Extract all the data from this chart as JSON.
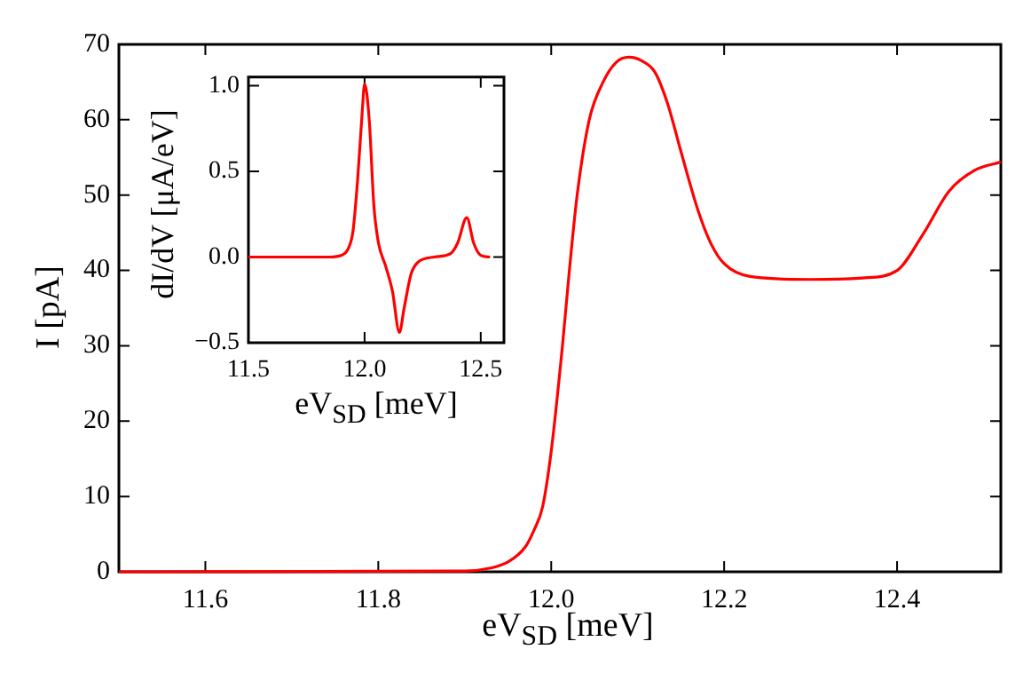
{
  "chart_data": [
    {
      "type": "line",
      "xlabel": "eV$_{SD}$ [meV]",
      "ylabel": "I [pA]",
      "xlim": [
        11.5,
        12.52
      ],
      "ylim": [
        0,
        70
      ],
      "xticks": [
        11.6,
        11.8,
        {
          "value": 12,
          "label": "12.0"
        },
        12.2,
        12.4
      ],
      "yticks": [
        0,
        10,
        20,
        30,
        40,
        50,
        60,
        70
      ],
      "series": [
        {
          "color": "#ff0000",
          "x": [
            11.5,
            11.9,
            11.93,
            11.95,
            11.97,
            11.98,
            11.99,
            12.0,
            12.013,
            12.021,
            12.03,
            12.044,
            12.06,
            12.075,
            12.09,
            12.105,
            12.12,
            12.135,
            12.15,
            12.17,
            12.185,
            12.2,
            12.23,
            12.3,
            12.36,
            12.4,
            12.43,
            12.46,
            12.49,
            12.52
          ],
          "values": [
            0,
            0.1,
            0.5,
            1.3,
            3.3,
            5.5,
            8.6,
            16,
            30,
            40,
            50,
            60,
            65,
            67.6,
            68.3,
            67.8,
            66.3,
            62,
            55.8,
            47.9,
            43.5,
            40.9,
            39.2,
            38.8,
            39,
            40,
            44.8,
            50.5,
            53.3,
            54.4
          ]
        }
      ]
    },
    {
      "type": "line",
      "xlabel": "eV$_{SD}$ [meV]",
      "ylabel": "dI/dV [μA/eV]",
      "xlim": [
        11.5,
        12.6
      ],
      "ylim": [
        -0.5,
        1.05
      ],
      "xticks": [
        11.5,
        {
          "value": 12,
          "label": "12.0"
        },
        12.5
      ],
      "yticks": [
        {
          "value": -0.5,
          "label": "−0.5"
        },
        {
          "value": 0,
          "label": "0.0"
        },
        0.5,
        {
          "value": 1,
          "label": "1.0"
        }
      ],
      "series": [
        {
          "color": "#ff0000",
          "x": [
            11.5,
            11.85,
            11.9,
            11.93,
            11.95,
            11.97,
            11.99,
            12.0,
            12.02,
            12.04,
            12.06,
            12.09,
            12.12,
            12.15,
            12.17,
            12.2,
            12.23,
            12.3,
            12.37,
            12.4,
            12.44,
            12.47,
            12.5,
            12.54
          ],
          "values": [
            0,
            0,
            0.01,
            0.05,
            0.15,
            0.45,
            0.85,
            1.01,
            0.8,
            0.3,
            0.08,
            -0.05,
            -0.2,
            -0.44,
            -0.3,
            -0.1,
            -0.03,
            0,
            0.02,
            0.08,
            0.23,
            0.08,
            0.01,
            0
          ]
        }
      ]
    }
  ]
}
